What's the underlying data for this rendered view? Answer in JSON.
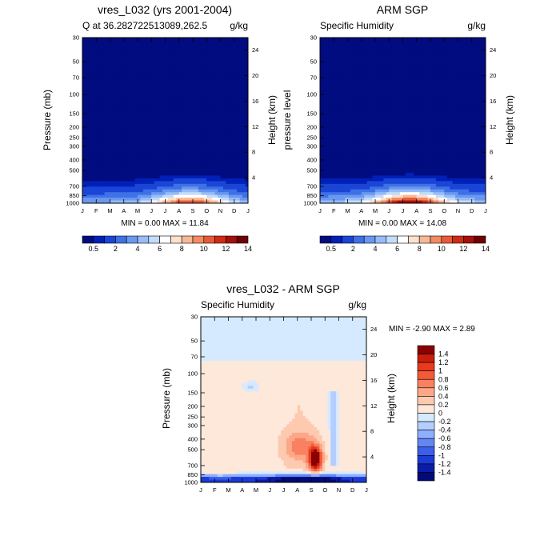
{
  "chart_data": [
    {
      "type": "heatmap",
      "title": "vres_L032 (yrs 2001-2004)",
      "subtitle_left": "Q at 36.282722513089,262.5",
      "subtitle_right": "g/kg",
      "ylabel": "Pressure (mb)",
      "ylabel_right": "Height (km)",
      "x_ticks": [
        "J",
        "F",
        "M",
        "A",
        "M",
        "J",
        "J",
        "A",
        "S",
        "O",
        "N",
        "D",
        "J"
      ],
      "y_ticks": [
        "30",
        "50",
        "70",
        "100",
        "150",
        "200",
        "250",
        "300",
        "400",
        "500",
        "700",
        "850",
        "1000"
      ],
      "y_ticks_right": [
        "24",
        "20",
        "16",
        "12",
        "8",
        "4"
      ],
      "min_max_text": "MIN =   0.00 MAX =  11.84",
      "colorbar_labels": [
        "0.5",
        "2",
        "4",
        "6",
        "8",
        "10",
        "12",
        "14"
      ],
      "colorbar_colors": [
        "#000c7f",
        "#0020b8",
        "#1a45d6",
        "#3e70e6",
        "#6a98f0",
        "#97bcf7",
        "#c2dcfb",
        "#ffffff",
        "#fde0cc",
        "#f8b896",
        "#f28a62",
        "#e85a35",
        "#d02a14",
        "#a5100a",
        "#6e0200"
      ],
      "peak_month": 7.8,
      "peak_value": 11.84
    },
    {
      "type": "heatmap",
      "title": "ARM SGP",
      "subtitle_left": "Specific Humidity",
      "subtitle_right": "g/kg",
      "ylabel": "pressure level",
      "ylabel_right": "Height (km)",
      "x_ticks": [
        "J",
        "F",
        "M",
        "A",
        "M",
        "J",
        "J",
        "A",
        "S",
        "O",
        "N",
        "D",
        "J"
      ],
      "y_ticks": [
        "30",
        "50",
        "70",
        "100",
        "150",
        "200",
        "250",
        "300",
        "400",
        "500",
        "700",
        "850",
        "1000"
      ],
      "y_ticks_right": [
        "24",
        "20",
        "16",
        "12",
        "8",
        "4"
      ],
      "min_max_text": "MIN =   0.00 MAX =  14.08",
      "colorbar_labels": [
        "0.5",
        "2",
        "4",
        "6",
        "8",
        "10",
        "12",
        "14"
      ],
      "colorbar_colors": [
        "#000c7f",
        "#0020b8",
        "#1a45d6",
        "#3e70e6",
        "#6a98f0",
        "#97bcf7",
        "#c2dcfb",
        "#ffffff",
        "#fde0cc",
        "#f8b896",
        "#f28a62",
        "#e85a35",
        "#d02a14",
        "#a5100a",
        "#6e0200"
      ],
      "peak_month": 6.5,
      "peak_value": 14.08
    },
    {
      "type": "heatmap",
      "title": "vres_L032 - ARM SGP",
      "subtitle_left": "Specific Humidity",
      "subtitle_right": "g/kg",
      "ylabel": "Pressure (mb)",
      "ylabel_right": "Height (km)",
      "x_ticks": [
        "J",
        "F",
        "M",
        "A",
        "M",
        "J",
        "J",
        "A",
        "S",
        "O",
        "N",
        "D",
        "J"
      ],
      "y_ticks": [
        "30",
        "50",
        "70",
        "100",
        "150",
        "200",
        "250",
        "300",
        "400",
        "500",
        "700",
        "850",
        "1000"
      ],
      "y_ticks_right": [
        "24",
        "20",
        "16",
        "12",
        "8",
        "4"
      ],
      "min_max_text": "MIN =  -2.90 MAX =   2.89",
      "colorbar_labels": [
        "1.4",
        "1.2",
        "1",
        "0.8",
        "0.6",
        "0.4",
        "0.2",
        "0",
        "-0.2",
        "-0.4",
        "-0.6",
        "-0.8",
        "-1",
        "-1.2",
        "-1.4"
      ],
      "colorbar_colors": [
        "#8b0000",
        "#c81e0a",
        "#e83a1e",
        "#f45a36",
        "#f98060",
        "#fca888",
        "#fdcab0",
        "#fde8da",
        "#d6eaff",
        "#b4ceff",
        "#8eaeff",
        "#6286f4",
        "#3c5ee8",
        "#1c3ad6",
        "#0a1ca8",
        "#000a78"
      ],
      "min_value": -2.9,
      "max_value": 2.89
    }
  ]
}
